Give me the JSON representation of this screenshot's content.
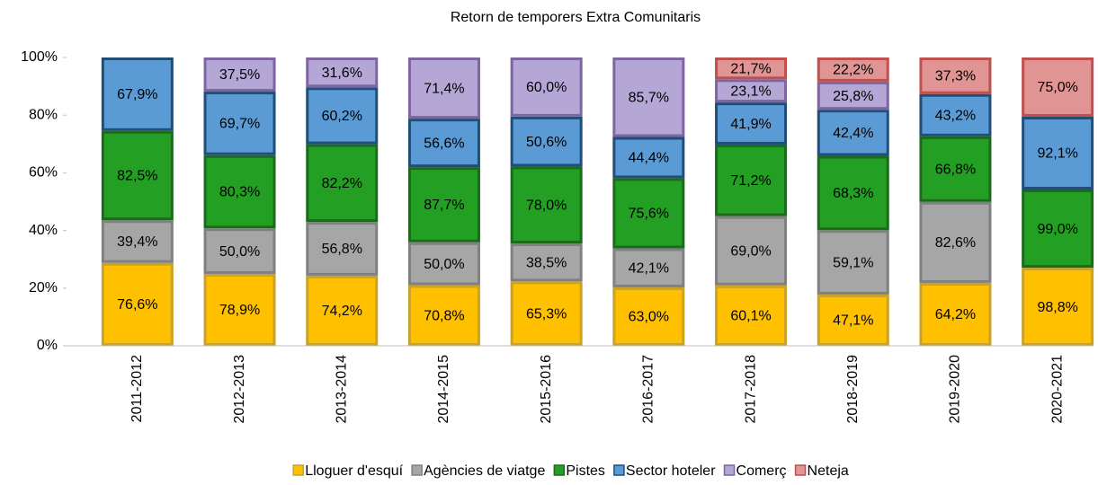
{
  "chart_data": {
    "type": "bar",
    "stacked": "percent",
    "title": "Retorn de temporers Extra Comunitaris",
    "categories": [
      "2011-2012",
      "2012-2013",
      "2013-2014",
      "2014-2015",
      "2015-2016",
      "2016-2017",
      "2017-2018",
      "2018-2019",
      "2019-2020",
      "2020-2021"
    ],
    "series": [
      {
        "name": "Lloguer d'esquí",
        "color": "#ffc000",
        "border": "#c9a227",
        "values": [
          76.6,
          78.9,
          74.2,
          70.8,
          65.3,
          63.0,
          60.1,
          47.1,
          64.2,
          98.8
        ],
        "value_labels": [
          "76,6%",
          "78,9%",
          "74,2%",
          "70,8%",
          "65,3%",
          "63,0%",
          "60,1%",
          "47,1%",
          "64,2%",
          "98,8%"
        ]
      },
      {
        "name": "Agències de viatge",
        "color": "#a6a6a6",
        "border": "#808080",
        "values": [
          39.4,
          50.0,
          56.8,
          50.0,
          38.5,
          42.1,
          69.0,
          59.1,
          82.6,
          null
        ],
        "value_labels": [
          "39,4%",
          "50,0%",
          "56,8%",
          "50,0%",
          "38,5%",
          "42,1%",
          "69,0%",
          "59,1%",
          "82,6%",
          null
        ]
      },
      {
        "name": "Pistes",
        "color": "#23a023",
        "border": "#1c6b1c",
        "values": [
          82.5,
          80.3,
          82.2,
          87.7,
          78.0,
          75.6,
          71.2,
          68.3,
          66.8,
          99.0
        ],
        "value_labels": [
          "82,5%",
          "80,3%",
          "82,2%",
          "87,7%",
          "78,0%",
          "75,6%",
          "71,2%",
          "68,3%",
          "66,8%",
          "99,0%"
        ]
      },
      {
        "name": "Sector hoteler",
        "color": "#5b9bd5",
        "border": "#1f4e79",
        "values": [
          67.9,
          69.7,
          60.2,
          56.6,
          50.6,
          44.4,
          41.9,
          42.4,
          43.2,
          92.1
        ],
        "value_labels": [
          "67,9%",
          "69,7%",
          "60,2%",
          "56,6%",
          "50,6%",
          "44,4%",
          "41,9%",
          "42,4%",
          "43,2%",
          "92,1%"
        ]
      },
      {
        "name": "Comerç",
        "color": "#b4a7d6",
        "border": "#8064a2",
        "values": [
          null,
          37.5,
          31.6,
          71.4,
          60.0,
          85.7,
          23.1,
          25.8,
          null,
          null
        ],
        "value_labels": [
          null,
          "37,5%",
          "31,6%",
          "71,4%",
          "60,0%",
          "85,7%",
          "23,1%",
          "25,8%",
          null,
          null
        ]
      },
      {
        "name": "Neteja",
        "color": "#e09494",
        "border": "#c0504d",
        "values": [
          null,
          null,
          null,
          null,
          null,
          null,
          21.7,
          22.2,
          37.3,
          75.0
        ],
        "value_labels": [
          null,
          null,
          null,
          null,
          null,
          null,
          "21,7%",
          "22,2%",
          "37,3%",
          "75,0%"
        ]
      }
    ],
    "ylim": [
      0,
      100
    ],
    "yticks": [
      {
        "value": 0,
        "label": "0%"
      },
      {
        "value": 20,
        "label": "20%"
      },
      {
        "value": 40,
        "label": "40%"
      },
      {
        "value": 60,
        "label": "60%"
      },
      {
        "value": 80,
        "label": "80%"
      },
      {
        "value": 100,
        "label": "100%"
      }
    ],
    "legend": "bottom"
  }
}
